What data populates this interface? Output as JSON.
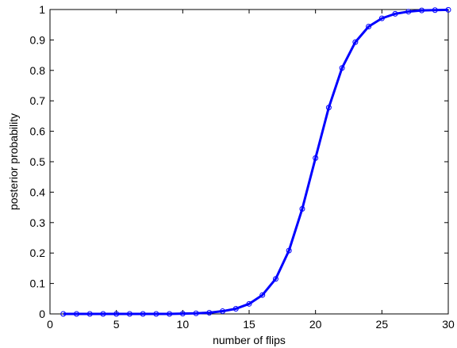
{
  "chart_data": {
    "type": "line",
    "title": "",
    "xlabel": "number of flips",
    "ylabel": "posterior probability",
    "xlim": [
      0,
      30
    ],
    "ylim": [
      0,
      1
    ],
    "grid": false,
    "x_ticks": [
      "0",
      "5",
      "10",
      "15",
      "20",
      "25",
      "30"
    ],
    "y_ticks": [
      "0",
      "0.1",
      "0.2",
      "0.3",
      "0.4",
      "0.5",
      "0.6",
      "0.7",
      "0.8",
      "0.9",
      "1"
    ],
    "series": [
      {
        "color": "#0000ff",
        "marker": "circle",
        "x": [
          1,
          2,
          3,
          4,
          5,
          6,
          7,
          8,
          9,
          10,
          11,
          12,
          13,
          14,
          15,
          16,
          17,
          18,
          19,
          20,
          21,
          22,
          23,
          24,
          25,
          26,
          27,
          28,
          29,
          30
        ],
        "y": [
          0.0,
          0.0,
          0.0,
          0.0,
          0.0,
          0.0,
          0.0,
          0.0,
          0.0,
          0.001,
          0.002,
          0.004,
          0.009,
          0.017,
          0.033,
          0.062,
          0.115,
          0.208,
          0.345,
          0.512,
          0.678,
          0.808,
          0.893,
          0.944,
          0.971,
          0.986,
          0.993,
          0.997,
          0.998,
          0.999
        ]
      }
    ]
  }
}
